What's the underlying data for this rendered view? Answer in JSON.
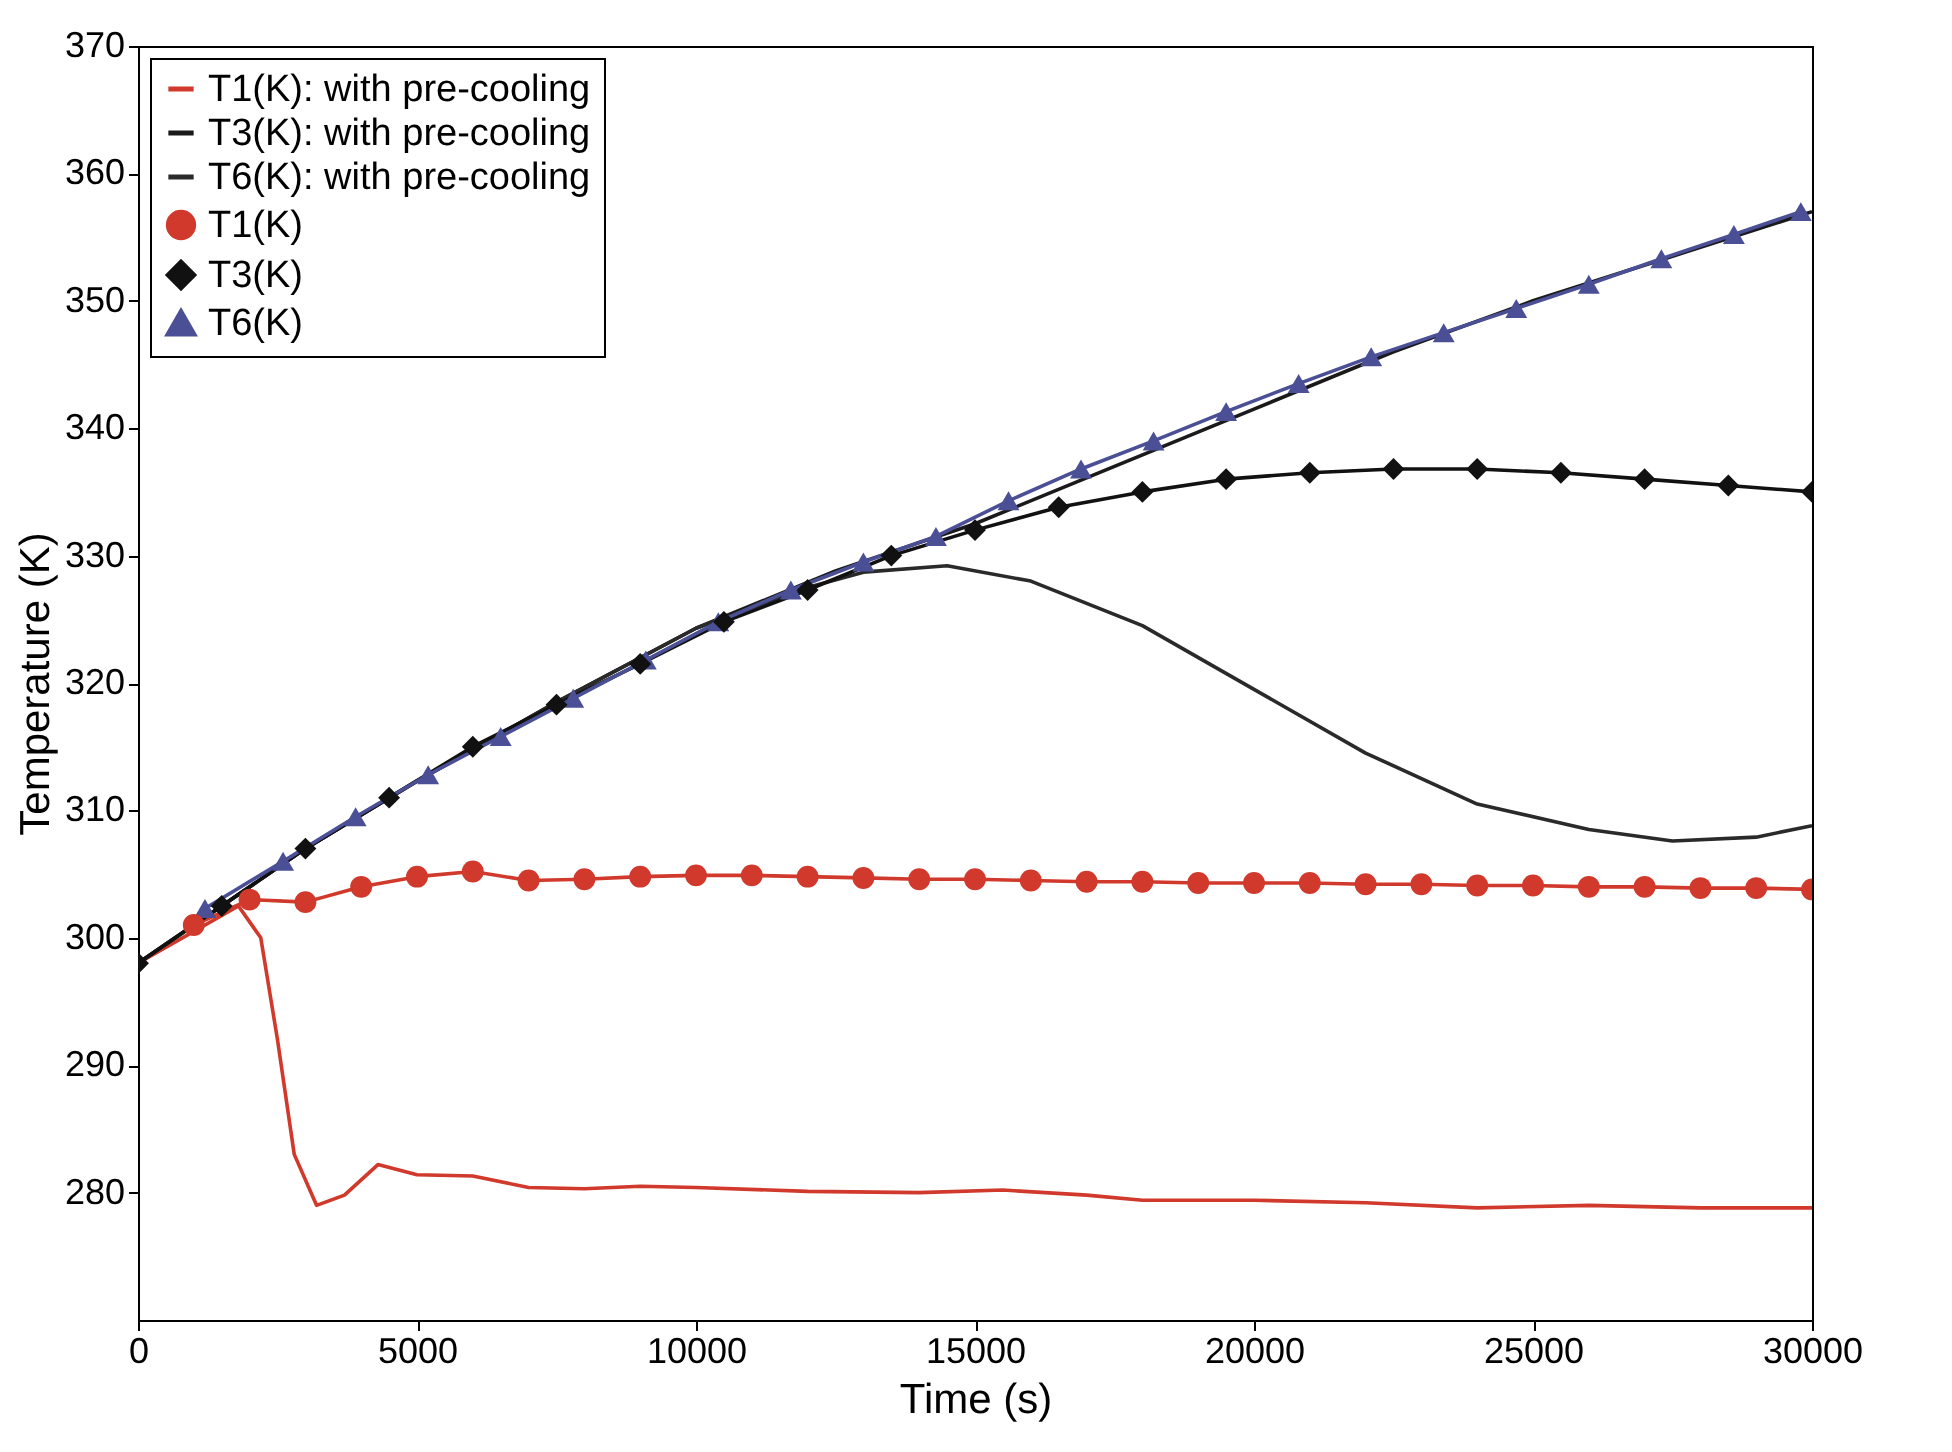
{
  "chart_data": {
    "type": "line",
    "xlabel": "Time (s)",
    "ylabel": "Temperature (K)",
    "xlim": [
      0,
      30000
    ],
    "xticks": [
      0,
      5000,
      10000,
      15000,
      20000,
      25000,
      30000
    ],
    "ylim": [
      270,
      370
    ],
    "yticks": [
      280,
      290,
      300,
      310,
      320,
      330,
      340,
      350,
      360,
      370
    ],
    "grid": false,
    "legend": "top left",
    "line_style": "solid",
    "series": [
      {
        "name": "T1(K): with pre-cooling",
        "color": "#d0392b",
        "marker": "none",
        "x": [
          0,
          1000,
          1800,
          2200,
          2500,
          2800,
          3200,
          3700,
          4300,
          5000,
          6000,
          7000,
          8000,
          9000,
          10000,
          12000,
          14000,
          15500,
          17000,
          18000,
          20000,
          22000,
          24000,
          26000,
          28000,
          30000
        ],
        "values": [
          298,
          300.5,
          302.5,
          300,
          292,
          283,
          279,
          279.8,
          282.2,
          281.4,
          281.3,
          280.4,
          280.3,
          280.5,
          280.4,
          280.1,
          280,
          280.2,
          279.8,
          279.4,
          279.4,
          279.2,
          278.8,
          279,
          278.8,
          278.8
        ]
      },
      {
        "name": "T3(K): with pre-cooling",
        "color": "#1a1a1a",
        "marker": "none",
        "x": [
          0,
          1500,
          3000,
          5000,
          7500,
          10000,
          12500,
          15000,
          17500,
          20000,
          22500,
          25000,
          27500,
          30000
        ],
        "values": [
          298,
          302.5,
          307,
          312.3,
          318.5,
          324.3,
          328.8,
          332.5,
          337,
          341.5,
          346,
          350,
          353.5,
          357
        ]
      },
      {
        "name": "T6(K): with pre-cooling",
        "color": "#2a2a2a",
        "marker": "none",
        "x": [
          0,
          1500,
          3000,
          5000,
          7500,
          10000,
          12000,
          13000,
          14500,
          16000,
          18000,
          20000,
          22000,
          24000,
          26000,
          27500,
          29000,
          30000
        ],
        "values": [
          298,
          302.5,
          307,
          312.3,
          318.5,
          324.3,
          327.5,
          328.7,
          329.2,
          328,
          324.5,
          319.5,
          314.5,
          310.5,
          308.5,
          307.6,
          307.9,
          308.8
        ]
      },
      {
        "name": "T1(K)",
        "color": "#d0392b",
        "marker": "circle",
        "x": [
          1000,
          2000,
          3000,
          4000,
          5000,
          6000,
          7000,
          8000,
          9000,
          10000,
          11000,
          12000,
          13000,
          14000,
          15000,
          16000,
          17000,
          18000,
          19000,
          20000,
          21000,
          22000,
          23000,
          24000,
          25000,
          26000,
          27000,
          28000,
          29000,
          30000
        ],
        "values": [
          301,
          303,
          302.8,
          304,
          304.8,
          305.2,
          304.5,
          304.6,
          304.8,
          304.9,
          304.9,
          304.8,
          304.7,
          304.6,
          304.6,
          304.5,
          304.4,
          304.4,
          304.3,
          304.3,
          304.3,
          304.2,
          304.2,
          304.1,
          304.1,
          304,
          304,
          303.9,
          303.9,
          303.8
        ]
      },
      {
        "name": "T3(K)",
        "color": "#111111",
        "marker": "diamond",
        "x": [
          0,
          1500,
          3000,
          4500,
          6000,
          7500,
          9000,
          10500,
          12000,
          13500,
          15000,
          16500,
          18000,
          19500,
          21000,
          22500,
          24000,
          25500,
          27000,
          28500,
          30000
        ],
        "values": [
          298,
          302.5,
          307,
          311,
          315,
          318.3,
          321.5,
          324.8,
          327.3,
          330,
          332,
          333.8,
          335,
          336,
          336.5,
          336.8,
          336.8,
          336.5,
          336,
          335.5,
          335
        ]
      },
      {
        "name": "T6(K)",
        "color": "#4a4f96",
        "marker": "triangle",
        "x": [
          1200,
          2600,
          3900,
          5200,
          6500,
          7800,
          9100,
          10400,
          11700,
          13000,
          14300,
          15600,
          16900,
          18200,
          19500,
          20800,
          22100,
          23400,
          24700,
          26000,
          27300,
          28600,
          29800
        ],
        "values": [
          302.3,
          306,
          309.5,
          312.8,
          315.8,
          318.8,
          321.8,
          324.8,
          327.3,
          329.5,
          331.5,
          334.3,
          336.8,
          339,
          341.3,
          343.5,
          345.6,
          347.5,
          349.4,
          351.3,
          353.3,
          355.2,
          357
        ]
      }
    ]
  }
}
